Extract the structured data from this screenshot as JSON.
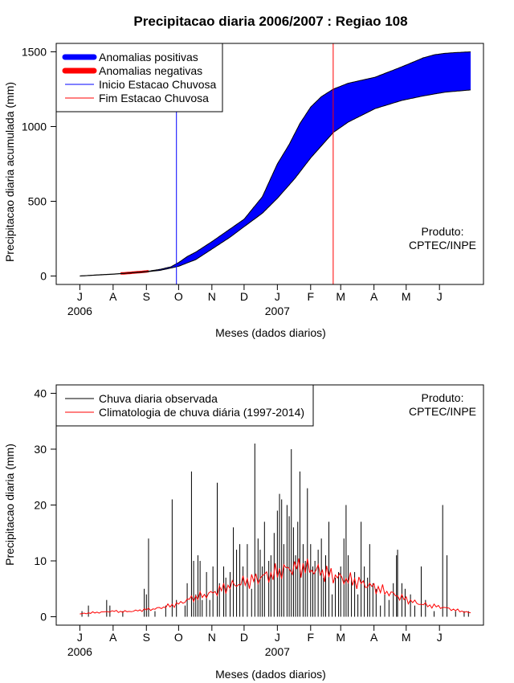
{
  "title": "Precipitacao diaria 2006/2007 : Regiao 108",
  "colors": {
    "positive": "#0000ff",
    "negative": "#ff0000",
    "climatology": "#ff0000",
    "observed": "#000000"
  },
  "chart_data": [
    {
      "type": "area",
      "name": "accumulated-precipitation",
      "ylabel": "Precipitacao diaria acumulada (mm)",
      "xlabel": "Meses (dados diarios)",
      "ylim": [
        0,
        1500
      ],
      "yticks": [
        0,
        500,
        1000,
        1500
      ],
      "month_labels": [
        "J",
        "A",
        "S",
        "O",
        "N",
        "D",
        "J",
        "F",
        "M",
        "A",
        "M",
        "J"
      ],
      "year_labels": [
        "2006",
        "2007"
      ],
      "x_unit": "days since 1 Jul 2006",
      "xlim": [
        -22,
        376
      ],
      "rainy_season_start_day": 90,
      "rainy_season_end_day": 236,
      "observed_cumulative": [
        [
          0,
          0
        ],
        [
          15,
          7
        ],
        [
          31,
          13
        ],
        [
          45,
          20
        ],
        [
          62,
          30
        ],
        [
          75,
          45
        ],
        [
          85,
          62
        ],
        [
          92,
          90
        ],
        [
          100,
          130
        ],
        [
          108,
          160
        ],
        [
          123,
          230
        ],
        [
          135,
          290
        ],
        [
          153,
          380
        ],
        [
          170,
          530
        ],
        [
          184,
          750
        ],
        [
          195,
          880
        ],
        [
          205,
          1020
        ],
        [
          215,
          1130
        ],
        [
          225,
          1200
        ],
        [
          236,
          1250
        ],
        [
          250,
          1290
        ],
        [
          275,
          1330
        ],
        [
          300,
          1400
        ],
        [
          320,
          1460
        ],
        [
          330,
          1480
        ],
        [
          340,
          1490
        ],
        [
          350,
          1495
        ],
        [
          364,
          1500
        ]
      ],
      "climatology_cumulative": [
        [
          0,
          0
        ],
        [
          31,
          12
        ],
        [
          62,
          28
        ],
        [
          75,
          38
        ],
        [
          92,
          65
        ],
        [
          108,
          110
        ],
        [
          123,
          180
        ],
        [
          140,
          260
        ],
        [
          153,
          330
        ],
        [
          170,
          420
        ],
        [
          184,
          520
        ],
        [
          200,
          650
        ],
        [
          215,
          790
        ],
        [
          236,
          960
        ],
        [
          250,
          1030
        ],
        [
          275,
          1120
        ],
        [
          300,
          1175
        ],
        [
          320,
          1205
        ],
        [
          340,
          1230
        ],
        [
          364,
          1245
        ]
      ],
      "legend": [
        {
          "label": "Anomalias positivas",
          "color": "#0000ff",
          "style": "thick"
        },
        {
          "label": "Anomalias negativas",
          "color": "#ff0000",
          "style": "thick"
        },
        {
          "label": "Inicio Estacao Chuvosa",
          "color": "#0000ff",
          "style": "thin"
        },
        {
          "label": "Fim Estacao Chuvosa",
          "color": "#ff0000",
          "style": "thin"
        }
      ],
      "annotation": [
        "Produto:",
        "CPTEC/INPE"
      ]
    },
    {
      "type": "bar",
      "name": "daily-precipitation",
      "ylabel": "Precipitacao diaria (mm)",
      "xlabel": "Meses (dados diarios)",
      "ylim": [
        0,
        40
      ],
      "yticks": [
        0,
        10,
        20,
        30,
        40
      ],
      "month_labels": [
        "J",
        "A",
        "S",
        "O",
        "N",
        "D",
        "J",
        "F",
        "M",
        "A",
        "M",
        "J"
      ],
      "year_labels": [
        "2006",
        "2007"
      ],
      "x_unit": "days since 1 Jul 2006",
      "xlim": [
        -22,
        376
      ],
      "observed_daily": [
        [
          2,
          1
        ],
        [
          8,
          2
        ],
        [
          25,
          3
        ],
        [
          28,
          2
        ],
        [
          40,
          1
        ],
        [
          60,
          5
        ],
        [
          62,
          4
        ],
        [
          64,
          14
        ],
        [
          70,
          1
        ],
        [
          80,
          2
        ],
        [
          86,
          21
        ],
        [
          90,
          3
        ],
        [
          98,
          2
        ],
        [
          100,
          6
        ],
        [
          104,
          26
        ],
        [
          106,
          10
        ],
        [
          108,
          4
        ],
        [
          110,
          11
        ],
        [
          112,
          10
        ],
        [
          114,
          3
        ],
        [
          118,
          8
        ],
        [
          121,
          3
        ],
        [
          124,
          9
        ],
        [
          128,
          24
        ],
        [
          130,
          6
        ],
        [
          134,
          9
        ],
        [
          136,
          7
        ],
        [
          140,
          8
        ],
        [
          143,
          16
        ],
        [
          146,
          12
        ],
        [
          149,
          13
        ],
        [
          152,
          9
        ],
        [
          156,
          13
        ],
        [
          160,
          5
        ],
        [
          163,
          31
        ],
        [
          166,
          14
        ],
        [
          168,
          12
        ],
        [
          170,
          9
        ],
        [
          172,
          17
        ],
        [
          176,
          10
        ],
        [
          178,
          11
        ],
        [
          181,
          15
        ],
        [
          184,
          19
        ],
        [
          186,
          22
        ],
        [
          188,
          21
        ],
        [
          190,
          13
        ],
        [
          193,
          20
        ],
        [
          195,
          18
        ],
        [
          197,
          30
        ],
        [
          199,
          16
        ],
        [
          201,
          11
        ],
        [
          203,
          17
        ],
        [
          205,
          26
        ],
        [
          208,
          13
        ],
        [
          210,
          10
        ],
        [
          212,
          23
        ],
        [
          215,
          13
        ],
        [
          217,
          9
        ],
        [
          219,
          10
        ],
        [
          222,
          12
        ],
        [
          225,
          14
        ],
        [
          227,
          7
        ],
        [
          229,
          11
        ],
        [
          232,
          17
        ],
        [
          235,
          4
        ],
        [
          238,
          7
        ],
        [
          241,
          8
        ],
        [
          243,
          9
        ],
        [
          246,
          14
        ],
        [
          248,
          20
        ],
        [
          250,
          11
        ],
        [
          253,
          7
        ],
        [
          256,
          8
        ],
        [
          259,
          4
        ],
        [
          262,
          17
        ],
        [
          265,
          9
        ],
        [
          268,
          7
        ],
        [
          270,
          13
        ],
        [
          273,
          6
        ],
        [
          276,
          5
        ],
        [
          280,
          2
        ],
        [
          284,
          4
        ],
        [
          288,
          3
        ],
        [
          292,
          6
        ],
        [
          295,
          11
        ],
        [
          296,
          12
        ],
        [
          300,
          6
        ],
        [
          303,
          5
        ],
        [
          308,
          4
        ],
        [
          312,
          2
        ],
        [
          318,
          9
        ],
        [
          322,
          3
        ],
        [
          330,
          1
        ],
        [
          338,
          20
        ],
        [
          342,
          11
        ],
        [
          350,
          1
        ],
        [
          358,
          1
        ],
        [
          362,
          1
        ]
      ],
      "climatology_daily": [
        [
          0,
          0.5
        ],
        [
          10,
          0.7
        ],
        [
          20,
          0.8
        ],
        [
          31,
          1.0
        ],
        [
          40,
          0.9
        ],
        [
          50,
          1.0
        ],
        [
          62,
          1.3
        ],
        [
          70,
          1.4
        ],
        [
          80,
          1.8
        ],
        [
          92,
          2.3
        ],
        [
          100,
          3.0
        ],
        [
          108,
          3.5
        ],
        [
          115,
          3.8
        ],
        [
          123,
          4.2
        ],
        [
          130,
          4.8
        ],
        [
          140,
          5.5
        ],
        [
          153,
          6.2
        ],
        [
          160,
          6.5
        ],
        [
          170,
          7.2
        ],
        [
          180,
          7.5
        ],
        [
          184,
          8.0
        ],
        [
          190,
          8.4
        ],
        [
          200,
          8.8
        ],
        [
          205,
          9.0
        ],
        [
          215,
          8.5
        ],
        [
          225,
          8.0
        ],
        [
          236,
          7.4
        ],
        [
          245,
          6.8
        ],
        [
          255,
          6.4
        ],
        [
          265,
          5.9
        ],
        [
          275,
          5.2
        ],
        [
          285,
          4.5
        ],
        [
          295,
          3.8
        ],
        [
          305,
          3.0
        ],
        [
          315,
          2.4
        ],
        [
          325,
          2.0
        ],
        [
          335,
          1.8
        ],
        [
          345,
          1.4
        ],
        [
          355,
          1.0
        ],
        [
          364,
          0.7
        ]
      ],
      "legend": [
        {
          "label": "Chuva diaria observada",
          "color": "#000000",
          "style": "thin"
        },
        {
          "label": "Climatologia de chuva diária (1997-2014)",
          "color": "#ff0000",
          "style": "thin"
        }
      ],
      "annotation": [
        "Produto:",
        "CPTEC/INPE"
      ]
    }
  ]
}
